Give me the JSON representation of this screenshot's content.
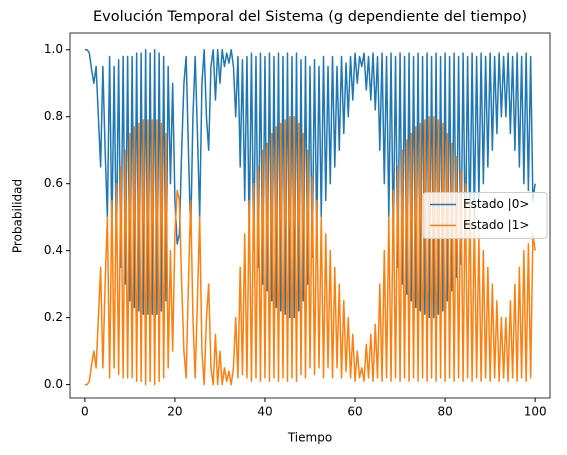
{
  "chart_data": {
    "type": "line",
    "title": "Evolución Temporal del Sistema (g dependiente del tiempo)",
    "x_label": "Tiempo",
    "y_label": "Probabilidad",
    "x": [
      0,
      0.5,
      1,
      1.5,
      2,
      2.5,
      3,
      3.5,
      4,
      4.5,
      5,
      5.5,
      6,
      6.5,
      7,
      7.5,
      8,
      8.5,
      9,
      9.5,
      10,
      10.5,
      11,
      11.5,
      12,
      12.5,
      13,
      13.5,
      14,
      14.5,
      15,
      15.5,
      16,
      16.5,
      17,
      17.5,
      18,
      18.5,
      19,
      19.5,
      20,
      20.5,
      21,
      21.5,
      22,
      22.5,
      23,
      23.5,
      24,
      24.5,
      25,
      25.5,
      26,
      26.5,
      27,
      27.5,
      28,
      28.5,
      29,
      29.5,
      30,
      30.5,
      31,
      31.5,
      32,
      32.5,
      33,
      33.5,
      34,
      34.5,
      35,
      35.5,
      36,
      36.5,
      37,
      37.5,
      38,
      38.5,
      39,
      39.5,
      40,
      40.5,
      41,
      41.5,
      42,
      42.5,
      43,
      43.5,
      44,
      44.5,
      45,
      45.5,
      46,
      46.5,
      47,
      47.5,
      48,
      48.5,
      49,
      49.5,
      50,
      50.5,
      51,
      51.5,
      52,
      52.5,
      53,
      53.5,
      54,
      54.5,
      55,
      55.5,
      56,
      56.5,
      57,
      57.5,
      58,
      58.5,
      59,
      59.5,
      60,
      60.5,
      61,
      61.5,
      62,
      62.5,
      63,
      63.5,
      64,
      64.5,
      65,
      65.5,
      66,
      66.5,
      67,
      67.5,
      68,
      68.5,
      69,
      69.5,
      70,
      70.5,
      71,
      71.5,
      72,
      72.5,
      73,
      73.5,
      74,
      74.5,
      75,
      75.5,
      76,
      76.5,
      77,
      77.5,
      78,
      78.5,
      79,
      79.5,
      80,
      80.5,
      81,
      81.5,
      82,
      82.5,
      83,
      83.5,
      84,
      84.5,
      85,
      85.5,
      86,
      86.5,
      87,
      87.5,
      88,
      88.5,
      89,
      89.5,
      90,
      90.5,
      91,
      91.5,
      92,
      92.5,
      93,
      93.5,
      94,
      94.5,
      95,
      95.5,
      96,
      96.5,
      97,
      97.5,
      98,
      98.5,
      99,
      99.5,
      100
    ],
    "series": [
      {
        "name": "Estado |0>",
        "color": "#1f77b4",
        "values": [
          1,
          1,
          0.99,
          0.94,
          0.9,
          0.95,
          0.8,
          0.65,
          0.95,
          0.7,
          0.5,
          0.98,
          0.45,
          0.95,
          0.4,
          0.97,
          0.35,
          0.98,
          0.3,
          0.98,
          0.25,
          0.98,
          0.23,
          0.99,
          0.22,
          0.99,
          0.21,
          1,
          0.21,
          0.99,
          0.21,
          1,
          0.21,
          0.99,
          0.22,
          0.98,
          0.25,
          0.95,
          0.6,
          0.9,
          0.55,
          0.42,
          0.45,
          0.7,
          0.9,
          0.98,
          0.7,
          0.45,
          0.8,
          0.98,
          0.75,
          0.5,
          0.9,
          1,
          0.8,
          0.7,
          0.95,
          1,
          0.85,
          1,
          0.9,
          1,
          0.95,
          0.99,
          0.96,
          1,
          0.95,
          0.8,
          0.98,
          0.65,
          0.97,
          0.55,
          0.98,
          0.45,
          0.99,
          0.4,
          0.98,
          0.35,
          0.99,
          0.3,
          0.98,
          0.28,
          0.99,
          0.25,
          0.98,
          0.23,
          0.99,
          0.22,
          0.98,
          0.21,
          0.99,
          0.2,
          0.98,
          0.2,
          0.99,
          0.22,
          0.97,
          0.25,
          0.98,
          0.3,
          0.95,
          0.38,
          0.97,
          0.45,
          0.95,
          0.5,
          0.98,
          0.55,
          0.95,
          0.6,
          0.98,
          0.65,
          0.95,
          0.7,
          0.98,
          0.75,
          0.96,
          0.8,
          0.98,
          0.85,
          0.99,
          0.9,
          0.98,
          0.95,
          0.99,
          0.88,
          0.98,
          0.85,
          0.99,
          0.82,
          0.98,
          0.7,
          0.99,
          0.6,
          0.98,
          0.5,
          0.99,
          0.42,
          0.98,
          0.35,
          0.99,
          0.3,
          0.98,
          0.27,
          0.99,
          0.25,
          0.98,
          0.23,
          0.99,
          0.22,
          0.98,
          0.21,
          0.99,
          0.2,
          0.98,
          0.2,
          0.99,
          0.21,
          0.98,
          0.22,
          0.99,
          0.25,
          0.98,
          0.28,
          0.99,
          0.32,
          0.98,
          0.36,
          0.99,
          0.4,
          0.98,
          0.45,
          0.99,
          0.5,
          0.98,
          0.55,
          0.99,
          0.6,
          0.98,
          0.65,
          0.99,
          0.7,
          0.98,
          0.75,
          0.99,
          0.8,
          0.98,
          0.8,
          0.99,
          0.75,
          0.98,
          0.7,
          0.99,
          0.65,
          0.98,
          0.6,
          0.99,
          0.58,
          0.98,
          0.55,
          0.6
        ]
      },
      {
        "name": "Estado |1>",
        "color": "#ff7f0e",
        "values": [
          0,
          0,
          0.01,
          0.06,
          0.1,
          0.05,
          0.2,
          0.35,
          0.05,
          0.3,
          0.5,
          0.02,
          0.55,
          0.05,
          0.6,
          0.03,
          0.65,
          0.02,
          0.7,
          0.02,
          0.75,
          0.02,
          0.77,
          0.01,
          0.78,
          0.01,
          0.79,
          0,
          0.79,
          0.01,
          0.79,
          0,
          0.79,
          0.01,
          0.78,
          0.02,
          0.75,
          0.05,
          0.4,
          0.1,
          0.45,
          0.58,
          0.55,
          0.3,
          0.1,
          0.02,
          0.3,
          0.55,
          0.2,
          0.02,
          0.25,
          0.5,
          0.1,
          0,
          0.2,
          0.3,
          0.05,
          0,
          0.15,
          0,
          0.1,
          0,
          0.05,
          0.01,
          0.04,
          0,
          0.05,
          0.2,
          0.02,
          0.35,
          0.03,
          0.45,
          0.02,
          0.55,
          0.01,
          0.6,
          0.02,
          0.65,
          0.01,
          0.7,
          0.02,
          0.72,
          0.01,
          0.75,
          0.02,
          0.77,
          0.01,
          0.78,
          0.02,
          0.79,
          0.01,
          0.8,
          0.02,
          0.8,
          0.01,
          0.78,
          0.03,
          0.75,
          0.02,
          0.7,
          0.05,
          0.62,
          0.03,
          0.55,
          0.05,
          0.5,
          0.02,
          0.45,
          0.05,
          0.4,
          0.02,
          0.35,
          0.05,
          0.3,
          0.02,
          0.25,
          0.04,
          0.2,
          0.02,
          0.15,
          0.01,
          0.1,
          0.02,
          0.05,
          0.01,
          0.12,
          0.02,
          0.15,
          0.01,
          0.18,
          0.02,
          0.3,
          0.01,
          0.4,
          0.02,
          0.5,
          0.01,
          0.58,
          0.02,
          0.65,
          0.01,
          0.7,
          0.02,
          0.73,
          0.01,
          0.75,
          0.02,
          0.77,
          0.01,
          0.78,
          0.02,
          0.79,
          0.01,
          0.8,
          0.02,
          0.8,
          0.01,
          0.79,
          0.02,
          0.78,
          0.01,
          0.75,
          0.02,
          0.72,
          0.01,
          0.68,
          0.02,
          0.64,
          0.01,
          0.6,
          0.02,
          0.55,
          0.01,
          0.5,
          0.02,
          0.45,
          0.01,
          0.4,
          0.02,
          0.35,
          0.01,
          0.3,
          0.02,
          0.25,
          0.01,
          0.2,
          0.02,
          0.2,
          0.01,
          0.25,
          0.02,
          0.3,
          0.01,
          0.35,
          0.02,
          0.4,
          0.01,
          0.42,
          0.02,
          0.45,
          0.4
        ]
      }
    ],
    "xlim": [
      -3.3,
      103.3
    ],
    "ylim": [
      -0.04,
      1.05
    ],
    "xticks": [
      0,
      20,
      40,
      60,
      80,
      100
    ],
    "yticks": [
      {
        "value": 0,
        "label": "0.0"
      },
      0.2,
      0.4,
      0.6,
      0.8,
      {
        "value": 1,
        "label": "1.0"
      }
    ],
    "grid": false,
    "legend": "center right"
  }
}
